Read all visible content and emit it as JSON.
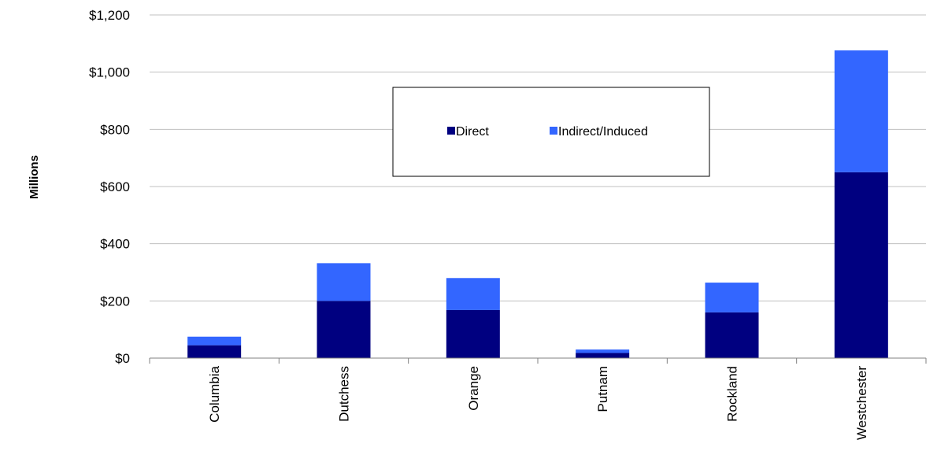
{
  "chart_data": {
    "type": "bar",
    "stacked": true,
    "categories": [
      "Columbia",
      "Dutchess",
      "Orange",
      "Putnam",
      "Rockland",
      "Westchester"
    ],
    "series": [
      {
        "name": "Direct",
        "color": "#000080",
        "values": [
          45,
          200,
          168,
          18,
          160,
          650
        ]
      },
      {
        "name": "Indirect/Induced",
        "color": "#3366FF",
        "values": [
          30,
          132,
          112,
          12,
          104,
          426
        ]
      }
    ],
    "ylabel": "Millions",
    "ylim": [
      0,
      1200
    ],
    "yticks": [
      {
        "value": 0,
        "label": "$0"
      },
      {
        "value": 200,
        "label": "$200"
      },
      {
        "value": 400,
        "label": "$400"
      },
      {
        "value": 600,
        "label": "$600"
      },
      {
        "value": 800,
        "label": "$800"
      },
      {
        "value": 1000,
        "label": "$1,000"
      },
      {
        "value": 1200,
        "label": "$1,200"
      }
    ],
    "grid": true,
    "legend_position": "top-center"
  }
}
